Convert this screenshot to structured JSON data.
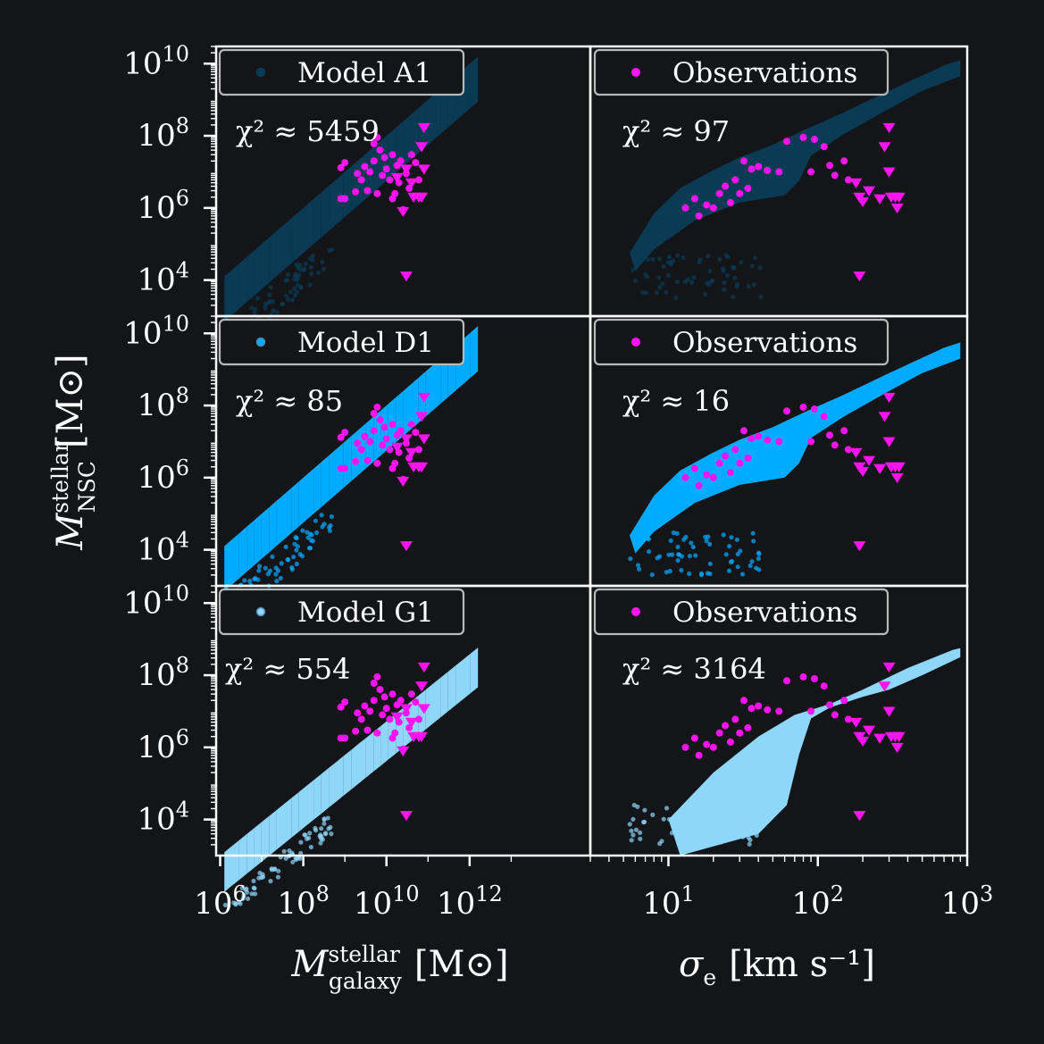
{
  "figure": {
    "background": "#131518",
    "axis_color": "#ffffff",
    "text_color": "#ffffff",
    "observation_color": "#ff14f0"
  },
  "labels": {
    "ylabel": {
      "main": "M",
      "sup": "stellar",
      "sub": "NSC",
      "unit": "[M⊙]"
    },
    "xlabel_left": {
      "main": "M",
      "sup": "stellar",
      "sub": "galaxy",
      "unit": "[M⊙]"
    },
    "xlabel_right": {
      "main": "σ",
      "sub": "e",
      "unit": "[km s⁻¹]"
    }
  },
  "ticks": {
    "y": [
      {
        "base": "10",
        "exp": "4",
        "value": 10000
      },
      {
        "base": "10",
        "exp": "6",
        "value": 1000000
      },
      {
        "base": "10",
        "exp": "8",
        "value": 100000000
      },
      {
        "base": "10",
        "exp": "10",
        "value": 10000000000
      }
    ],
    "x_left": [
      {
        "base": "10",
        "exp": "6",
        "value": 1000000
      },
      {
        "base": "10",
        "exp": "8",
        "value": 100000000
      },
      {
        "base": "10",
        "exp": "10",
        "value": 10000000000
      },
      {
        "base": "10",
        "exp": "12",
        "value": 1000000000000
      }
    ],
    "x_right": [
      {
        "base": "10",
        "exp": "1",
        "value": 10
      },
      {
        "base": "10",
        "exp": "2",
        "value": 100
      },
      {
        "base": "10",
        "exp": "3",
        "value": 1000
      }
    ]
  },
  "chart_data": [
    {
      "type": "scatter",
      "row": 0,
      "col": 0,
      "legend": "Model A1",
      "model_color": "#0b3a55",
      "chi_label": "χ² ≈ 5459",
      "xscale": "log",
      "yscale": "log",
      "xlim": [
        800000,
        800000000000000
      ],
      "ylim": [
        1000,
        30000000000
      ]
    },
    {
      "type": "scatter",
      "row": 0,
      "col": 1,
      "legend": "Observations",
      "model_color": "#0b3a55",
      "chi_label": "χ² ≈ 97",
      "xscale": "log",
      "yscale": "log",
      "xlim": [
        3,
        1000
      ],
      "ylim": [
        1000,
        30000000000
      ]
    },
    {
      "type": "scatter",
      "row": 1,
      "col": 0,
      "legend": "Model D1",
      "model_color": "#00aaff",
      "chi_label": "χ² ≈ 85",
      "xscale": "log",
      "yscale": "log",
      "xlim": [
        800000,
        800000000000000
      ],
      "ylim": [
        1000,
        30000000000
      ]
    },
    {
      "type": "scatter",
      "row": 1,
      "col": 1,
      "legend": "Observations",
      "model_color": "#00aaff",
      "chi_label": "χ² ≈ 16",
      "xscale": "log",
      "yscale": "log",
      "xlim": [
        3,
        1000
      ],
      "ylim": [
        1000,
        30000000000
      ]
    },
    {
      "type": "scatter",
      "row": 2,
      "col": 0,
      "legend": "Model G1",
      "model_color": "#8fd6fb",
      "chi_label": "χ² ≈ 554",
      "xscale": "log",
      "yscale": "log",
      "xlim": [
        800000,
        800000000000000
      ],
      "ylim": [
        1000,
        30000000000
      ]
    },
    {
      "type": "scatter",
      "row": 2,
      "col": 1,
      "legend": "Observations",
      "model_color": "#8fd6fb",
      "chi_label": "χ² ≈ 3164",
      "xscale": "log",
      "yscale": "log",
      "xlim": [
        3,
        1000
      ],
      "ylim": [
        1000,
        30000000000
      ]
    }
  ],
  "observations": {
    "left": {
      "detections": [
        [
          800000000,
          13000000
        ],
        [
          1000000000,
          18000000
        ],
        [
          800000000,
          1800000
        ],
        [
          1000000000,
          1800000
        ],
        [
          1800000000,
          2800000
        ],
        [
          2500000000,
          6000000
        ],
        [
          3000000000,
          14000000
        ],
        [
          3500000000,
          3000000
        ],
        [
          4000000000,
          10000000
        ],
        [
          5000000000,
          20000000
        ],
        [
          5000000000,
          60000000
        ],
        [
          6000000000,
          90000000
        ],
        [
          7000000000,
          40000000
        ],
        [
          8000000000,
          8000000
        ],
        [
          9000000000,
          25000000
        ],
        [
          10000000000,
          12000000
        ],
        [
          12000000000,
          6000000
        ],
        [
          14000000000,
          30000000
        ],
        [
          16000000000,
          2500000
        ],
        [
          18000000000,
          15000000
        ],
        [
          20000000000,
          5000000
        ],
        [
          22000000000,
          20000000
        ],
        [
          25000000000,
          900000
        ],
        [
          30000000000,
          9000000
        ],
        [
          35000000000,
          3500000
        ],
        [
          40000000000,
          30000000
        ],
        [
          50000000000,
          18000000
        ],
        [
          60000000000,
          6000000
        ],
        [
          2000000000,
          9000000
        ],
        [
          6000000000,
          2500000
        ],
        [
          14000000000,
          1800000
        ]
      ],
      "upper_limits": [
        [
          80000000000,
          170000000
        ],
        [
          70000000000,
          50000000
        ],
        [
          80000000000,
          12000000
        ],
        [
          30000000000,
          12000000
        ],
        [
          40000000000,
          5000000
        ],
        [
          45000000000,
          2000000
        ],
        [
          60000000000,
          2000000
        ],
        [
          70000000000,
          2000000
        ],
        [
          25000000000,
          800000
        ],
        [
          18000000000,
          7000000
        ],
        [
          30000000000,
          13000
        ]
      ]
    },
    "right": {
      "detections": [
        [
          13,
          1000000
        ],
        [
          15,
          1800000
        ],
        [
          16,
          600000
        ],
        [
          18,
          1200000
        ],
        [
          22,
          2500000
        ],
        [
          24,
          4000000
        ],
        [
          26,
          1400000
        ],
        [
          28,
          6000000
        ],
        [
          30,
          2500000
        ],
        [
          32,
          20000000
        ],
        [
          34,
          3500000
        ],
        [
          36,
          12000000
        ],
        [
          40,
          14000000
        ],
        [
          46,
          11000000
        ],
        [
          55,
          10000000
        ],
        [
          62,
          70000000
        ],
        [
          80,
          90000000
        ],
        [
          95,
          80000000
        ],
        [
          110,
          50000000
        ],
        [
          120,
          15000000
        ],
        [
          130,
          8000000
        ],
        [
          150,
          20000000
        ],
        [
          160,
          6000000
        ],
        [
          20,
          1000000
        ],
        [
          90,
          10000000
        ]
      ],
      "upper_limits": [
        [
          190,
          13000
        ],
        [
          180,
          5000000
        ],
        [
          190,
          2000000
        ],
        [
          220,
          3000000
        ],
        [
          260,
          1800000
        ],
        [
          280,
          50000000
        ],
        [
          300,
          10000000
        ],
        [
          310,
          2000000
        ],
        [
          330,
          2000000
        ],
        [
          340,
          1000000
        ],
        [
          350,
          2000000
        ],
        [
          300,
          170000000
        ],
        [
          200,
          1500000
        ]
      ]
    }
  }
}
